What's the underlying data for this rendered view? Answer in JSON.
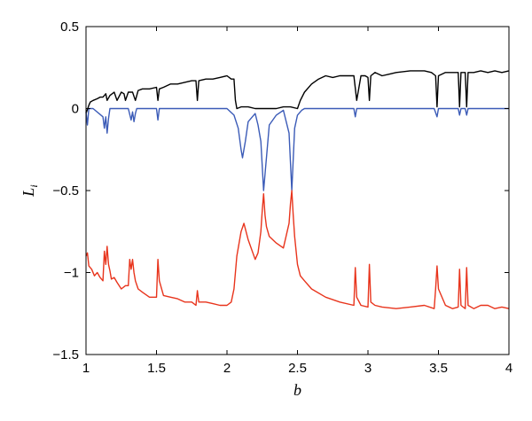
{
  "chart_data": {
    "type": "line",
    "xlabel": "b",
    "ylabel": {
      "base": "L",
      "sub": "i"
    },
    "xlim": [
      1,
      4
    ],
    "ylim": [
      -1.5,
      0.5
    ],
    "xticks": [
      1,
      1.5,
      2,
      2.5,
      3,
      3.5,
      4
    ],
    "xtick_labels": [
      "1",
      "1.5",
      "2",
      "2.5",
      "3",
      "3.5",
      "4"
    ],
    "yticks": [
      -1.5,
      -1,
      -0.5,
      0,
      0.5
    ],
    "ytick_labels": [
      "−1.5",
      "−1",
      "−0.5",
      "0",
      "0.5"
    ],
    "grid": false,
    "legend": "none",
    "series": [
      {
        "color": "#000000",
        "x": [
          1.0,
          1.02,
          1.03,
          1.05,
          1.08,
          1.1,
          1.12,
          1.14,
          1.15,
          1.17,
          1.2,
          1.22,
          1.25,
          1.27,
          1.28,
          1.3,
          1.33,
          1.35,
          1.37,
          1.4,
          1.45,
          1.5,
          1.51,
          1.52,
          1.55,
          1.6,
          1.65,
          1.7,
          1.75,
          1.78,
          1.79,
          1.8,
          1.85,
          1.9,
          1.95,
          2.0,
          2.03,
          2.05,
          2.06,
          2.07,
          2.1,
          2.15,
          2.2,
          2.25,
          2.3,
          2.35,
          2.4,
          2.45,
          2.5,
          2.52,
          2.55,
          2.6,
          2.65,
          2.7,
          2.75,
          2.8,
          2.85,
          2.9,
          2.92,
          2.95,
          2.98,
          3.0,
          3.01,
          3.02,
          3.05,
          3.1,
          3.15,
          3.2,
          3.3,
          3.4,
          3.45,
          3.48,
          3.49,
          3.5,
          3.55,
          3.6,
          3.64,
          3.65,
          3.66,
          3.69,
          3.7,
          3.71,
          3.75,
          3.8,
          3.85,
          3.9,
          3.95,
          4.0
        ],
        "y": [
          -0.03,
          0.02,
          0.04,
          0.05,
          0.06,
          0.07,
          0.07,
          0.09,
          0.05,
          0.08,
          0.1,
          0.05,
          0.1,
          0.09,
          0.05,
          0.1,
          0.1,
          0.05,
          0.11,
          0.12,
          0.12,
          0.13,
          0.05,
          0.12,
          0.13,
          0.15,
          0.15,
          0.16,
          0.17,
          0.17,
          0.05,
          0.17,
          0.18,
          0.18,
          0.19,
          0.2,
          0.18,
          0.18,
          0.05,
          0.0,
          0.01,
          0.01,
          0.0,
          0.0,
          0.0,
          0.0,
          0.01,
          0.01,
          0.0,
          0.05,
          0.1,
          0.15,
          0.18,
          0.2,
          0.19,
          0.2,
          0.2,
          0.2,
          0.05,
          0.2,
          0.2,
          0.19,
          0.05,
          0.2,
          0.22,
          0.2,
          0.21,
          0.22,
          0.23,
          0.23,
          0.22,
          0.2,
          0.01,
          0.2,
          0.22,
          0.22,
          0.22,
          0.01,
          0.22,
          0.22,
          0.01,
          0.22,
          0.22,
          0.23,
          0.22,
          0.23,
          0.22,
          0.23
        ]
      },
      {
        "color": "#3b5bb7",
        "x": [
          1.0,
          1.01,
          1.02,
          1.05,
          1.12,
          1.13,
          1.14,
          1.15,
          1.16,
          1.17,
          1.2,
          1.3,
          1.32,
          1.33,
          1.34,
          1.35,
          1.36,
          1.4,
          1.5,
          1.51,
          1.52,
          1.6,
          2.0,
          2.05,
          2.08,
          2.1,
          2.11,
          2.13,
          2.15,
          2.2,
          2.22,
          2.24,
          2.26,
          2.27,
          2.3,
          2.35,
          2.4,
          2.44,
          2.46,
          2.48,
          2.5,
          2.53,
          2.55,
          2.6,
          2.9,
          2.91,
          2.92,
          2.95,
          3.47,
          3.49,
          3.5,
          3.64,
          3.65,
          3.66,
          3.69,
          3.7,
          3.71,
          4.0
        ],
        "y": [
          -0.02,
          -0.1,
          0.0,
          0.0,
          -0.05,
          -0.12,
          -0.05,
          -0.15,
          -0.06,
          0.0,
          0.0,
          0.0,
          -0.07,
          -0.02,
          -0.08,
          -0.03,
          0.0,
          0.0,
          0.0,
          -0.07,
          0.0,
          0.0,
          0.0,
          -0.04,
          -0.12,
          -0.25,
          -0.3,
          -0.2,
          -0.08,
          -0.03,
          -0.1,
          -0.2,
          -0.5,
          -0.4,
          -0.1,
          -0.04,
          -0.01,
          -0.15,
          -0.5,
          -0.12,
          -0.04,
          -0.01,
          0.0,
          0.0,
          0.0,
          -0.05,
          0.0,
          0.0,
          0.0,
          -0.05,
          0.0,
          0.0,
          -0.04,
          0.0,
          0.0,
          -0.04,
          0.0,
          0.0
        ]
      },
      {
        "color": "#e8341c",
        "x": [
          1.0,
          1.01,
          1.02,
          1.04,
          1.06,
          1.08,
          1.1,
          1.12,
          1.13,
          1.14,
          1.15,
          1.16,
          1.17,
          1.18,
          1.2,
          1.22,
          1.25,
          1.28,
          1.3,
          1.31,
          1.32,
          1.33,
          1.34,
          1.35,
          1.37,
          1.4,
          1.45,
          1.5,
          1.51,
          1.52,
          1.55,
          1.6,
          1.65,
          1.7,
          1.75,
          1.78,
          1.79,
          1.8,
          1.85,
          1.9,
          1.95,
          2.0,
          2.03,
          2.05,
          2.07,
          2.1,
          2.12,
          2.15,
          2.2,
          2.22,
          2.24,
          2.25,
          2.26,
          2.27,
          2.28,
          2.3,
          2.35,
          2.4,
          2.44,
          2.45,
          2.46,
          2.47,
          2.48,
          2.5,
          2.52,
          2.55,
          2.6,
          2.7,
          2.8,
          2.9,
          2.91,
          2.92,
          2.95,
          3.0,
          3.01,
          3.02,
          3.05,
          3.1,
          3.2,
          3.3,
          3.4,
          3.47,
          3.48,
          3.49,
          3.5,
          3.55,
          3.6,
          3.64,
          3.65,
          3.66,
          3.69,
          3.7,
          3.71,
          3.75,
          3.8,
          3.85,
          3.9,
          3.95,
          4.0
        ],
        "y": [
          -0.9,
          -0.88,
          -0.96,
          -0.98,
          -1.02,
          -1.0,
          -1.03,
          -1.05,
          -0.87,
          -0.95,
          -0.84,
          -0.95,
          -0.99,
          -1.04,
          -1.03,
          -1.06,
          -1.1,
          -1.08,
          -1.08,
          -0.92,
          -0.98,
          -0.92,
          -1.0,
          -1.05,
          -1.1,
          -1.12,
          -1.15,
          -1.15,
          -0.92,
          -1.05,
          -1.14,
          -1.15,
          -1.16,
          -1.18,
          -1.18,
          -1.2,
          -1.11,
          -1.18,
          -1.18,
          -1.19,
          -1.2,
          -1.2,
          -1.18,
          -1.1,
          -0.9,
          -0.75,
          -0.7,
          -0.8,
          -0.92,
          -0.88,
          -0.75,
          -0.62,
          -0.52,
          -0.65,
          -0.72,
          -0.78,
          -0.82,
          -0.85,
          -0.7,
          -0.58,
          -0.5,
          -0.65,
          -0.78,
          -0.95,
          -1.02,
          -1.05,
          -1.1,
          -1.15,
          -1.18,
          -1.2,
          -0.97,
          -1.15,
          -1.2,
          -1.21,
          -0.95,
          -1.18,
          -1.2,
          -1.21,
          -1.22,
          -1.21,
          -1.2,
          -1.22,
          -1.1,
          -0.96,
          -1.1,
          -1.2,
          -1.22,
          -1.21,
          -0.98,
          -1.2,
          -1.22,
          -0.97,
          -1.2,
          -1.22,
          -1.2,
          -1.2,
          -1.22,
          -1.21,
          -1.22
        ]
      }
    ]
  }
}
